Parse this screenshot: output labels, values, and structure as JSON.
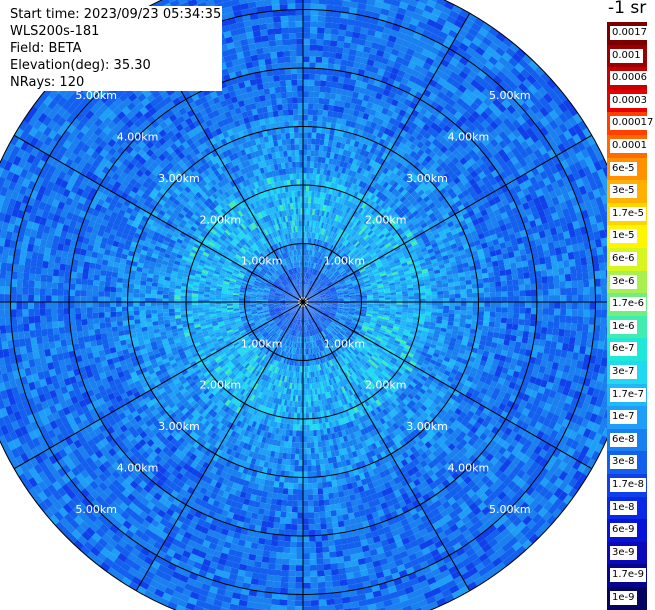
{
  "header": {
    "start_time": "Start time: 2023/09/23 05:34:35",
    "instrument": "WLS200s-181",
    "field": "Field: BETA",
    "elevation": "Elevation(deg): 35.30",
    "nrays": "NRays: 120"
  },
  "colorbar": {
    "title": "-1 sr",
    "labels": [
      "0.0017",
      "0.001",
      "0.0006",
      "0.0003",
      "0.00017",
      "0.0001",
      "6e-5",
      "3e-5",
      "1.7e-5",
      "1e-5",
      "6e-6",
      "3e-6",
      "1.7e-6",
      "1e-6",
      "6e-7",
      "3e-7",
      "1.7e-7",
      "1e-7",
      "6e-8",
      "3e-8",
      "1.7e-8",
      "1e-8",
      "6e-9",
      "3e-9",
      "1.7e-9",
      "1e-9"
    ],
    "colors": [
      "#7a0000",
      "#9a0000",
      "#c40000",
      "#e60000",
      "#ff4000",
      "#ff6a00",
      "#ff9000",
      "#ffb000",
      "#ffd500",
      "#fff500",
      "#d8f520",
      "#a8f050",
      "#70ee80",
      "#40ecb0",
      "#20e8d8",
      "#20d8f0",
      "#20b8f8",
      "#1e9ef6",
      "#1a80f0",
      "#1460ee",
      "#0f40ea",
      "#0a28e6",
      "#0614d8",
      "#0a0ab8",
      "#06068c",
      "#040460"
    ]
  },
  "chart_data": {
    "type": "heatmap",
    "projection": "polar-ppi",
    "field": "BETA",
    "elevation_deg": 35.3,
    "n_rays": 120,
    "range_rings_km": [
      1,
      2,
      3,
      4,
      5
    ],
    "range_ring_labels": [
      "1.00km",
      "2.00km",
      "3.00km",
      "4.00km",
      "5.00km"
    ],
    "radial_lines_deg": [
      0,
      30,
      60,
      90,
      120,
      150,
      180,
      210,
      240,
      270,
      300,
      330
    ],
    "max_range_km": 5.7,
    "colorbar_scale": "log",
    "colorbar_range": [
      1e-09,
      0.0017
    ],
    "value_profile": [
      {
        "range_km": 0.5,
        "beta_approx": 3e-08
      },
      {
        "range_km": 1.0,
        "beta_approx": 6e-08
      },
      {
        "range_km": 1.5,
        "beta_approx": 1e-07
      },
      {
        "range_km": 2.0,
        "beta_approx": 6e-08
      },
      {
        "range_km": 3.0,
        "beta_approx": 3e-08
      },
      {
        "range_km": 4.0,
        "beta_approx": 1.7e-08
      },
      {
        "range_km": 5.0,
        "beta_approx": 1.7e-08
      }
    ]
  }
}
